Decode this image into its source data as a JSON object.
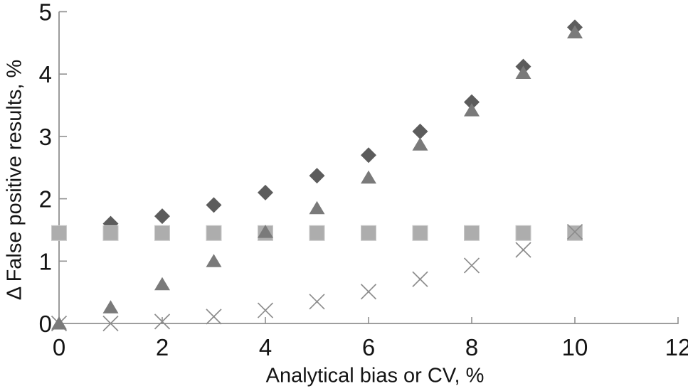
{
  "figure": {
    "background": "#ffffff",
    "text_color": "#141414",
    "axis_color": "#909090"
  },
  "chart_data": {
    "type": "scatter",
    "title": "",
    "xlabel": "Analytical bias or CV, %",
    "ylabel": "Δ False positive results, %",
    "xlim": [
      0,
      12
    ],
    "ylim": [
      0,
      5
    ],
    "x_ticks": [
      0,
      2,
      4,
      6,
      8,
      10,
      12
    ],
    "y_ticks": [
      0,
      1,
      2,
      3,
      4,
      5
    ],
    "grid": false,
    "legend": "none",
    "series": [
      {
        "name": "diamond-series",
        "marker": "diamond",
        "color": "#5c5c5c",
        "x": [
          1,
          2,
          3,
          4,
          5,
          6,
          7,
          8,
          9,
          10
        ],
        "y": [
          1.6,
          1.72,
          1.9,
          2.1,
          2.37,
          2.7,
          3.08,
          3.55,
          4.12,
          4.75
        ]
      },
      {
        "name": "square-series",
        "marker": "square",
        "color": "#adadad",
        "border_color": "#c9c9c9",
        "x": [
          0,
          1,
          2,
          3,
          4,
          5,
          6,
          7,
          8,
          9,
          10
        ],
        "y": [
          1.45,
          1.45,
          1.45,
          1.45,
          1.45,
          1.45,
          1.45,
          1.45,
          1.45,
          1.45,
          1.45
        ]
      },
      {
        "name": "x-series",
        "marker": "x",
        "color": "#8c8c8c",
        "x": [
          0,
          1,
          2,
          3,
          4,
          5,
          6,
          7,
          8,
          9,
          10
        ],
        "y": [
          0,
          0,
          0.03,
          0.11,
          0.21,
          0.35,
          0.51,
          0.71,
          0.93,
          1.18,
          1.47
        ]
      },
      {
        "name": "triangle-series",
        "marker": "triangle",
        "color": "#7a7a7a",
        "x": [
          0,
          1,
          2,
          3,
          4,
          5,
          6,
          7,
          8,
          9,
          10
        ],
        "y": [
          0,
          0.26,
          0.63,
          1.0,
          1.47,
          1.85,
          2.34,
          2.87,
          3.42,
          4.02,
          4.67
        ]
      }
    ]
  }
}
